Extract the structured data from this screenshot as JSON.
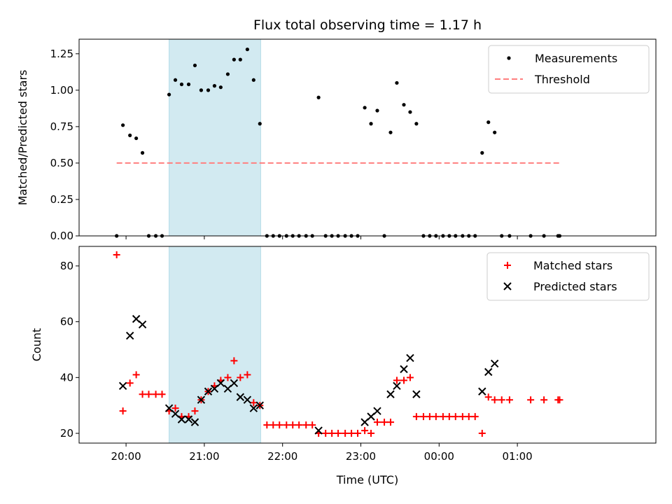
{
  "chart_data": [
    {
      "type": "scatter",
      "title": "Flux total observing time = 1.17 h",
      "xlabel": "",
      "ylabel": "Matched/Predicted stars",
      "x_unit": "hours (UTC, continuing past midnight)",
      "xlim": [
        19.4,
        26.77
      ],
      "ylim": [
        0,
        1.35
      ],
      "yticks": [
        "0.00",
        "0.25",
        "0.50",
        "0.75",
        "1.00",
        "1.25"
      ],
      "grid": false,
      "legend_position": "top-right",
      "shaded_interval": {
        "x": [
          20.55,
          21.72
        ],
        "color": "#add8e6"
      },
      "series": [
        {
          "name": "Measurements",
          "marker": "dot",
          "color": "#000000",
          "points": [
            [
              19.88,
              0
            ],
            [
              19.96,
              0.76
            ],
            [
              20.05,
              0.69
            ],
            [
              20.13,
              0.67
            ],
            [
              20.21,
              0.57
            ],
            [
              20.29,
              0
            ],
            [
              20.38,
              0
            ],
            [
              20.46,
              0
            ],
            [
              20.55,
              0.97
            ],
            [
              20.63,
              1.07
            ],
            [
              20.71,
              1.04
            ],
            [
              20.8,
              1.04
            ],
            [
              20.88,
              1.17
            ],
            [
              20.96,
              1.0
            ],
            [
              21.05,
              1.0
            ],
            [
              21.13,
              1.03
            ],
            [
              21.21,
              1.02
            ],
            [
              21.3,
              1.11
            ],
            [
              21.38,
              1.21
            ],
            [
              21.46,
              1.21
            ],
            [
              21.55,
              1.28
            ],
            [
              21.63,
              1.07
            ],
            [
              21.71,
              0.77
            ],
            [
              21.8,
              0
            ],
            [
              21.88,
              0
            ],
            [
              21.96,
              0
            ],
            [
              22.05,
              0
            ],
            [
              22.13,
              0
            ],
            [
              22.21,
              0
            ],
            [
              22.3,
              0
            ],
            [
              22.38,
              0
            ],
            [
              22.46,
              0.95
            ],
            [
              22.55,
              0
            ],
            [
              22.63,
              0
            ],
            [
              22.71,
              0
            ],
            [
              22.8,
              0
            ],
            [
              22.88,
              0
            ],
            [
              22.96,
              0
            ],
            [
              23.05,
              0.88
            ],
            [
              23.13,
              0.77
            ],
            [
              23.21,
              0.86
            ],
            [
              23.3,
              0
            ],
            [
              23.38,
              0.71
            ],
            [
              23.46,
              1.05
            ],
            [
              23.55,
              0.9
            ],
            [
              23.63,
              0.85
            ],
            [
              23.71,
              0.77
            ],
            [
              23.8,
              0
            ],
            [
              23.88,
              0
            ],
            [
              23.96,
              0
            ],
            [
              24.05,
              0
            ],
            [
              24.13,
              0
            ],
            [
              24.21,
              0
            ],
            [
              24.3,
              0
            ],
            [
              24.38,
              0
            ],
            [
              24.46,
              0
            ],
            [
              24.55,
              0.57
            ],
            [
              24.63,
              0.78
            ],
            [
              24.71,
              0.71
            ],
            [
              24.8,
              0
            ],
            [
              24.9,
              0
            ],
            [
              25.17,
              0
            ],
            [
              25.34,
              0
            ],
            [
              25.52,
              0
            ],
            [
              25.54,
              0
            ]
          ]
        },
        {
          "name": "Threshold",
          "line": "dashed",
          "color": "#ff7f7f",
          "points": [
            [
              19.88,
              0.5
            ],
            [
              25.54,
              0.5
            ]
          ]
        }
      ]
    },
    {
      "type": "scatter",
      "title": "",
      "xlabel": "Time (UTC)",
      "ylabel": "Count",
      "x_unit": "hours (UTC, continuing past midnight)",
      "xlim": [
        19.4,
        26.77
      ],
      "ylim": [
        16.5,
        87
      ],
      "yticks": [
        "20",
        "40",
        "60",
        "80"
      ],
      "xticks": [
        {
          "value": 20,
          "label": "20:00"
        },
        {
          "value": 21,
          "label": "21:00"
        },
        {
          "value": 22,
          "label": "22:00"
        },
        {
          "value": 23,
          "label": "23:00"
        },
        {
          "value": 24,
          "label": "00:00"
        },
        {
          "value": 25,
          "label": "01:00"
        }
      ],
      "grid": false,
      "legend_position": "top-right",
      "shaded_interval": {
        "x": [
          20.55,
          21.72
        ],
        "color": "#add8e6"
      },
      "series": [
        {
          "name": "Matched stars",
          "marker": "plus",
          "color": "#ff0000",
          "points": [
            [
              19.88,
              84
            ],
            [
              19.96,
              28
            ],
            [
              20.05,
              38
            ],
            [
              20.13,
              41
            ],
            [
              20.21,
              34
            ],
            [
              20.29,
              34
            ],
            [
              20.38,
              34
            ],
            [
              20.46,
              34
            ],
            [
              20.55,
              28
            ],
            [
              20.63,
              29
            ],
            [
              20.71,
              26
            ],
            [
              20.8,
              26
            ],
            [
              20.88,
              28
            ],
            [
              20.96,
              32
            ],
            [
              21.05,
              35
            ],
            [
              21.13,
              37
            ],
            [
              21.21,
              39
            ],
            [
              21.3,
              40
            ],
            [
              21.38,
              46
            ],
            [
              21.46,
              40
            ],
            [
              21.55,
              41
            ],
            [
              21.63,
              31
            ],
            [
              21.71,
              30
            ],
            [
              21.8,
              23
            ],
            [
              21.88,
              23
            ],
            [
              21.96,
              23
            ],
            [
              22.05,
              23
            ],
            [
              22.13,
              23
            ],
            [
              22.21,
              23
            ],
            [
              22.3,
              23
            ],
            [
              22.38,
              23
            ],
            [
              22.46,
              20
            ],
            [
              22.55,
              20
            ],
            [
              22.63,
              20
            ],
            [
              22.71,
              20
            ],
            [
              22.8,
              20
            ],
            [
              22.88,
              20
            ],
            [
              22.96,
              20
            ],
            [
              23.05,
              21
            ],
            [
              23.13,
              20
            ],
            [
              23.21,
              24
            ],
            [
              23.3,
              24
            ],
            [
              23.38,
              24
            ],
            [
              23.46,
              39
            ],
            [
              23.55,
              39
            ],
            [
              23.63,
              40
            ],
            [
              23.71,
              26
            ],
            [
              23.8,
              26
            ],
            [
              23.88,
              26
            ],
            [
              23.96,
              26
            ],
            [
              24.05,
              26
            ],
            [
              24.13,
              26
            ],
            [
              24.21,
              26
            ],
            [
              24.3,
              26
            ],
            [
              24.38,
              26
            ],
            [
              24.46,
              26
            ],
            [
              24.55,
              20
            ],
            [
              24.63,
              33
            ],
            [
              24.71,
              32
            ],
            [
              24.8,
              32
            ],
            [
              24.9,
              32
            ],
            [
              25.17,
              32
            ],
            [
              25.34,
              32
            ],
            [
              25.52,
              32
            ],
            [
              25.54,
              32
            ]
          ]
        },
        {
          "name": "Predicted stars",
          "marker": "cross",
          "color": "#000000",
          "points": [
            [
              19.96,
              37
            ],
            [
              20.05,
              55
            ],
            [
              20.13,
              61
            ],
            [
              20.21,
              59
            ],
            [
              20.55,
              29
            ],
            [
              20.63,
              27
            ],
            [
              20.71,
              25
            ],
            [
              20.8,
              25
            ],
            [
              20.88,
              24
            ],
            [
              20.96,
              32
            ],
            [
              21.05,
              35
            ],
            [
              21.13,
              36
            ],
            [
              21.21,
              38
            ],
            [
              21.3,
              36
            ],
            [
              21.38,
              38
            ],
            [
              21.46,
              33
            ],
            [
              21.55,
              32
            ],
            [
              21.63,
              29
            ],
            [
              21.71,
              30
            ],
            [
              22.46,
              21
            ],
            [
              23.05,
              24
            ],
            [
              23.13,
              26
            ],
            [
              23.21,
              28
            ],
            [
              23.38,
              34
            ],
            [
              23.46,
              37
            ],
            [
              23.55,
              43
            ],
            [
              23.63,
              47
            ],
            [
              23.71,
              34
            ],
            [
              24.55,
              35
            ],
            [
              24.63,
              42
            ],
            [
              24.71,
              45
            ]
          ]
        }
      ]
    }
  ]
}
